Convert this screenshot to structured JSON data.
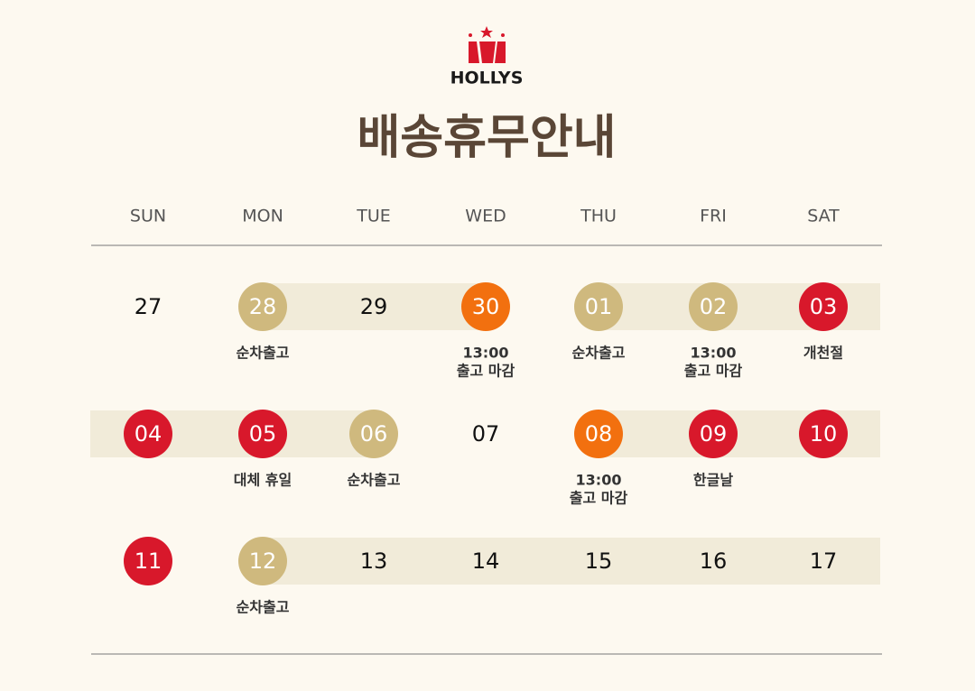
{
  "brand": "HOLLYS",
  "title": "배송휴무안내",
  "weekdays": [
    "SUN",
    "MON",
    "TUE",
    "WED",
    "THU",
    "FRI",
    "SAT"
  ],
  "weeks": [
    [
      {
        "date": "27"
      },
      {
        "date": "28",
        "color": "#cfb97e",
        "note": [
          "순차출고"
        ]
      },
      {
        "date": "29"
      },
      {
        "date": "30",
        "color": "#f2700f",
        "note": [
          "13:00",
          "출고 마감"
        ]
      },
      {
        "date": "01",
        "color": "#cfb97e",
        "note": [
          "순차출고"
        ]
      },
      {
        "date": "02",
        "color": "#cfb97e",
        "note": [
          "13:00",
          "출고 마감"
        ]
      },
      {
        "date": "03",
        "color": "#d8182b",
        "note": [
          "개천절"
        ]
      }
    ],
    [
      {
        "date": "04",
        "color": "#d8182b"
      },
      {
        "date": "05",
        "color": "#d8182b",
        "note": [
          "대체 휴일"
        ]
      },
      {
        "date": "06",
        "color": "#cfb97e",
        "note": [
          "순차출고"
        ]
      },
      {
        "date": "07"
      },
      {
        "date": "08",
        "color": "#f2700f",
        "note": [
          "13:00",
          "출고 마감"
        ]
      },
      {
        "date": "09",
        "color": "#d8182b",
        "note": [
          "한글날"
        ]
      },
      {
        "date": "10",
        "color": "#d8182b"
      }
    ],
    [
      {
        "date": "11",
        "color": "#d8182b"
      },
      {
        "date": "12",
        "color": "#cfb97e",
        "note": [
          "순차출고"
        ]
      },
      {
        "date": "13"
      },
      {
        "date": "14"
      },
      {
        "date": "15"
      },
      {
        "date": "16"
      },
      {
        "date": "17"
      }
    ]
  ]
}
